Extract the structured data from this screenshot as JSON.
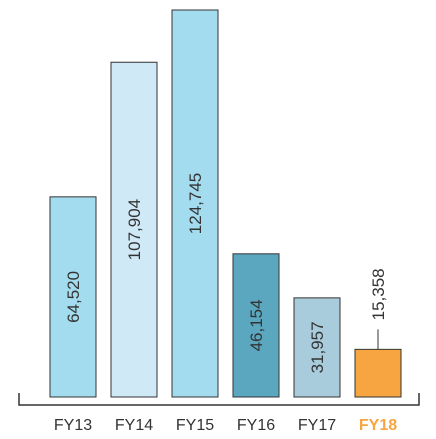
{
  "chart_data": {
    "type": "bar",
    "categories": [
      "FY13",
      "FY14",
      "FY15",
      "FY16",
      "FY17",
      "FY18"
    ],
    "values": [
      64520,
      107904,
      124745,
      46154,
      31957,
      15358
    ],
    "value_labels": [
      "64,520",
      "107,904",
      "124,745",
      "46,154",
      "31,957",
      "15,358"
    ],
    "bar_colors": [
      "#a4dcef",
      "#cfe9f7",
      "#a4dcef",
      "#5ba7bf",
      "#a8ccdb",
      "#f7a540"
    ],
    "highlight_category": "FY18",
    "highlight_color": "#f7a540",
    "title": "",
    "xlabel": "",
    "ylabel": "",
    "ylim": [
      0,
      124745
    ],
    "grid": false,
    "legend": "none"
  }
}
